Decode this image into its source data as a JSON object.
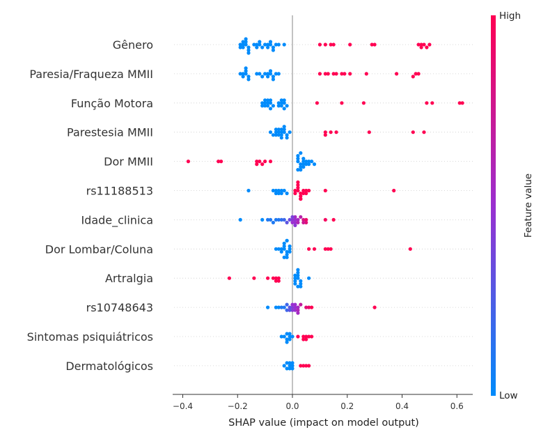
{
  "chart_data": {
    "type": "scatter",
    "subtype": "shap-beeswarm",
    "xlabel": "SHAP value (impact on model output)",
    "xlim": [
      -0.43,
      0.67
    ],
    "xticks": [
      -0.4,
      -0.2,
      0.0,
      0.2,
      0.4,
      0.6
    ],
    "xtick_labels": [
      "−0.4",
      "−0.2",
      "0.0",
      "0.2",
      "0.4",
      "0.6"
    ],
    "colorbar": {
      "label": "Feature value",
      "high": "High",
      "low": "Low",
      "low_color": "#008bfb",
      "high_color": "#ff0052"
    },
    "features": [
      {
        "name": "Gênero",
        "points": [
          [
            0.47,
            1
          ],
          [
            0.5,
            1
          ],
          [
            0.46,
            1
          ],
          [
            0.48,
            1
          ],
          [
            0.49,
            1
          ],
          [
            0.47,
            1
          ],
          [
            0.29,
            1
          ],
          [
            0.3,
            1
          ],
          [
            0.21,
            1
          ],
          [
            0.15,
            1
          ],
          [
            0.14,
            1
          ],
          [
            0.12,
            1
          ],
          [
            0.1,
            1
          ],
          [
            -0.18,
            0
          ],
          [
            -0.17,
            0
          ],
          [
            -0.16,
            0
          ],
          [
            -0.18,
            0
          ],
          [
            -0.19,
            0
          ],
          [
            -0.17,
            0
          ],
          [
            -0.16,
            0
          ],
          [
            -0.18,
            0
          ],
          [
            -0.17,
            0
          ],
          [
            -0.19,
            0
          ],
          [
            -0.16,
            0
          ],
          [
            -0.14,
            0
          ],
          [
            -0.13,
            0
          ],
          [
            -0.12,
            0
          ],
          [
            -0.11,
            0
          ],
          [
            -0.13,
            0
          ],
          [
            -0.12,
            0
          ],
          [
            -0.1,
            0
          ],
          [
            -0.09,
            0
          ],
          [
            -0.08,
            0
          ],
          [
            -0.07,
            0
          ],
          [
            -0.06,
            0
          ],
          [
            -0.05,
            0
          ],
          [
            -0.03,
            0
          ],
          [
            -0.08,
            0
          ],
          [
            -0.07,
            0
          ],
          [
            -0.09,
            0
          ]
        ]
      },
      {
        "name": "Paresia/Fraqueza MMII",
        "points": [
          [
            0.45,
            1
          ],
          [
            0.44,
            1
          ],
          [
            0.46,
            1
          ],
          [
            0.38,
            1
          ],
          [
            0.27,
            1
          ],
          [
            0.21,
            1
          ],
          [
            0.19,
            1
          ],
          [
            0.18,
            1
          ],
          [
            0.16,
            1
          ],
          [
            0.15,
            1
          ],
          [
            0.13,
            1
          ],
          [
            0.12,
            1
          ],
          [
            0.1,
            1
          ],
          [
            -0.18,
            0
          ],
          [
            -0.17,
            0
          ],
          [
            -0.16,
            0
          ],
          [
            -0.18,
            0
          ],
          [
            -0.17,
            0
          ],
          [
            -0.19,
            0
          ],
          [
            -0.16,
            0
          ],
          [
            -0.17,
            0
          ],
          [
            -0.13,
            0
          ],
          [
            -0.12,
            0
          ],
          [
            -0.11,
            0
          ],
          [
            -0.1,
            0
          ],
          [
            -0.09,
            0
          ],
          [
            -0.08,
            0
          ],
          [
            -0.07,
            0
          ],
          [
            -0.06,
            0
          ],
          [
            -0.05,
            0
          ],
          [
            -0.08,
            0
          ],
          [
            -0.07,
            0
          ],
          [
            -0.09,
            0
          ]
        ]
      },
      {
        "name": "Função Motora",
        "points": [
          [
            0.61,
            1
          ],
          [
            0.62,
            1
          ],
          [
            0.51,
            1
          ],
          [
            0.49,
            1
          ],
          [
            0.26,
            1
          ],
          [
            0.18,
            1
          ],
          [
            0.09,
            1
          ],
          [
            -0.11,
            0
          ],
          [
            -0.1,
            0
          ],
          [
            -0.09,
            0
          ],
          [
            -0.08,
            0
          ],
          [
            -0.07,
            0
          ],
          [
            -0.11,
            0
          ],
          [
            -0.1,
            0
          ],
          [
            -0.09,
            0
          ],
          [
            -0.08,
            0
          ],
          [
            -0.1,
            0
          ],
          [
            -0.09,
            0
          ],
          [
            -0.08,
            0
          ],
          [
            -0.05,
            0
          ],
          [
            -0.04,
            0
          ],
          [
            -0.03,
            0
          ],
          [
            -0.02,
            0
          ],
          [
            -0.04,
            0
          ],
          [
            -0.03,
            0
          ],
          [
            -0.04,
            0
          ],
          [
            -0.03,
            0
          ],
          [
            -0.05,
            0
          ]
        ]
      },
      {
        "name": "Parestesia MMII",
        "points": [
          [
            0.48,
            1
          ],
          [
            0.44,
            1
          ],
          [
            0.28,
            1
          ],
          [
            0.16,
            1
          ],
          [
            0.14,
            1
          ],
          [
            0.12,
            1
          ],
          [
            0.12,
            1
          ],
          [
            -0.08,
            0
          ],
          [
            -0.07,
            0
          ],
          [
            -0.06,
            0
          ],
          [
            -0.05,
            0
          ],
          [
            -0.04,
            0
          ],
          [
            -0.03,
            0
          ],
          [
            -0.02,
            0
          ],
          [
            -0.01,
            0
          ],
          [
            -0.06,
            0
          ],
          [
            -0.05,
            0
          ],
          [
            -0.04,
            0
          ],
          [
            -0.03,
            0
          ],
          [
            -0.02,
            0
          ],
          [
            -0.05,
            0
          ],
          [
            -0.04,
            0
          ],
          [
            -0.03,
            0
          ],
          [
            -0.04,
            0
          ],
          [
            -0.06,
            0
          ]
        ]
      },
      {
        "name": "Dor MMII",
        "points": [
          [
            -0.38,
            1
          ],
          [
            -0.27,
            1
          ],
          [
            -0.26,
            1
          ],
          [
            -0.13,
            1
          ],
          [
            -0.12,
            1
          ],
          [
            -0.11,
            1
          ],
          [
            -0.1,
            1
          ],
          [
            -0.08,
            1
          ],
          [
            -0.13,
            1
          ],
          [
            0.02,
            0
          ],
          [
            0.03,
            0
          ],
          [
            0.04,
            0
          ],
          [
            0.05,
            0
          ],
          [
            0.06,
            0
          ],
          [
            0.07,
            0
          ],
          [
            0.08,
            0
          ],
          [
            0.02,
            0
          ],
          [
            0.03,
            0
          ],
          [
            0.04,
            0
          ],
          [
            0.05,
            0
          ],
          [
            0.02,
            0
          ],
          [
            0.03,
            0
          ],
          [
            0.04,
            0
          ],
          [
            0.06,
            0
          ],
          [
            0.03,
            0
          ],
          [
            0.02,
            0
          ],
          [
            0.04,
            0
          ]
        ]
      },
      {
        "name": "rs11188513",
        "points": [
          [
            -0.16,
            0
          ],
          [
            -0.07,
            0
          ],
          [
            -0.06,
            0
          ],
          [
            -0.05,
            0
          ],
          [
            -0.04,
            0
          ],
          [
            -0.03,
            0
          ],
          [
            -0.02,
            0
          ],
          [
            -0.06,
            0
          ],
          [
            -0.05,
            0
          ],
          [
            -0.04,
            0
          ],
          [
            0.01,
            1
          ],
          [
            0.02,
            1
          ],
          [
            0.03,
            1
          ],
          [
            0.04,
            1
          ],
          [
            0.05,
            1
          ],
          [
            0.06,
            1
          ],
          [
            0.02,
            1
          ],
          [
            0.03,
            1
          ],
          [
            0.04,
            1
          ],
          [
            0.01,
            1
          ],
          [
            0.02,
            1
          ],
          [
            0.03,
            1
          ],
          [
            0.05,
            1
          ],
          [
            0.12,
            1
          ],
          [
            0.37,
            1
          ],
          [
            0.02,
            1
          ],
          [
            0.03,
            1
          ]
        ]
      },
      {
        "name": "Idade_clinica",
        "points": [
          [
            -0.19,
            0
          ],
          [
            -0.11,
            0
          ],
          [
            -0.09,
            0.1
          ],
          [
            -0.08,
            0.1
          ],
          [
            -0.07,
            0.1
          ],
          [
            -0.06,
            0.1
          ],
          [
            -0.05,
            0.1
          ],
          [
            -0.04,
            0.15
          ],
          [
            -0.03,
            0.2
          ],
          [
            -0.02,
            0.3
          ],
          [
            -0.01,
            0.35
          ],
          [
            0.0,
            0.45
          ],
          [
            0.01,
            0.5
          ],
          [
            0.02,
            0.55
          ],
          [
            0.01,
            0.5
          ],
          [
            0.0,
            0.5
          ],
          [
            0.02,
            0.6
          ],
          [
            0.01,
            0.55
          ],
          [
            0.03,
            0.65
          ],
          [
            0.04,
            0.8
          ],
          [
            0.05,
            0.9
          ],
          [
            0.12,
            0.95
          ],
          [
            0.15,
            1
          ],
          [
            0.05,
            0.85
          ],
          [
            0.04,
            0.75
          ],
          [
            0.0,
            0.4
          ],
          [
            0.01,
            0.45
          ]
        ]
      },
      {
        "name": "Dor Lombar/Coluna",
        "points": [
          [
            -0.06,
            0
          ],
          [
            -0.05,
            0
          ],
          [
            -0.04,
            0
          ],
          [
            -0.03,
            0
          ],
          [
            -0.02,
            0
          ],
          [
            -0.01,
            0
          ],
          [
            -0.04,
            0
          ],
          [
            -0.03,
            0
          ],
          [
            -0.02,
            0
          ],
          [
            -0.01,
            0
          ],
          [
            -0.03,
            0
          ],
          [
            -0.02,
            0
          ],
          [
            -0.02,
            0
          ],
          [
            -0.03,
            0
          ],
          [
            -0.01,
            0
          ],
          [
            -0.02,
            0
          ],
          [
            0.06,
            1
          ],
          [
            0.08,
            1
          ],
          [
            0.12,
            1
          ],
          [
            0.13,
            1
          ],
          [
            0.14,
            1
          ],
          [
            0.43,
            1
          ]
        ]
      },
      {
        "name": "Artralgia",
        "points": [
          [
            -0.23,
            1
          ],
          [
            -0.14,
            1
          ],
          [
            -0.09,
            1
          ],
          [
            -0.07,
            1
          ],
          [
            -0.06,
            1
          ],
          [
            -0.05,
            1
          ],
          [
            -0.06,
            1
          ],
          [
            -0.05,
            1
          ],
          [
            0.01,
            0
          ],
          [
            0.02,
            0
          ],
          [
            0.03,
            0
          ],
          [
            0.01,
            0
          ],
          [
            0.02,
            0
          ],
          [
            0.03,
            0
          ],
          [
            0.01,
            0
          ],
          [
            0.02,
            0
          ],
          [
            0.03,
            0
          ],
          [
            0.02,
            0
          ],
          [
            0.06,
            0
          ],
          [
            0.02,
            0
          ],
          [
            0.01,
            0
          ]
        ]
      },
      {
        "name": "rs10748643",
        "points": [
          [
            -0.09,
            0
          ],
          [
            -0.06,
            0
          ],
          [
            -0.05,
            0
          ],
          [
            -0.04,
            0.1
          ],
          [
            -0.03,
            0.1
          ],
          [
            -0.02,
            0.2
          ],
          [
            -0.01,
            0.3
          ],
          [
            0.0,
            0.4
          ],
          [
            0.01,
            0.5
          ],
          [
            0.02,
            0.55
          ],
          [
            0.01,
            0.5
          ],
          [
            0.0,
            0.45
          ],
          [
            0.02,
            0.6
          ],
          [
            0.03,
            0.7
          ],
          [
            0.05,
            0.85
          ],
          [
            0.06,
            0.9
          ],
          [
            0.07,
            1
          ],
          [
            0.3,
            1
          ],
          [
            0.01,
            0.5
          ],
          [
            0.0,
            0.5
          ],
          [
            0.02,
            0.55
          ],
          [
            -0.02,
            0.2
          ],
          [
            -0.01,
            0.3
          ]
        ]
      },
      {
        "name": "Sintomas psiquiátricos",
        "points": [
          [
            -0.04,
            0
          ],
          [
            -0.03,
            0
          ],
          [
            -0.02,
            0
          ],
          [
            -0.01,
            0
          ],
          [
            -0.02,
            0
          ],
          [
            -0.01,
            0
          ],
          [
            0.0,
            0
          ],
          [
            -0.02,
            0
          ],
          [
            -0.01,
            0
          ],
          [
            0.02,
            1
          ],
          [
            0.04,
            1
          ],
          [
            0.05,
            1
          ],
          [
            0.06,
            1
          ],
          [
            0.07,
            1
          ],
          [
            0.05,
            1
          ],
          [
            0.04,
            1
          ]
        ]
      },
      {
        "name": "Dermatológicos",
        "points": [
          [
            -0.03,
            0
          ],
          [
            -0.02,
            0
          ],
          [
            -0.01,
            0
          ],
          [
            0.0,
            0
          ],
          [
            -0.01,
            0
          ],
          [
            0.0,
            0
          ],
          [
            -0.01,
            0
          ],
          [
            0.0,
            0
          ],
          [
            -0.02,
            0
          ],
          [
            0.03,
            1
          ],
          [
            0.05,
            1
          ],
          [
            0.06,
            1
          ],
          [
            0.04,
            1
          ]
        ]
      }
    ]
  }
}
